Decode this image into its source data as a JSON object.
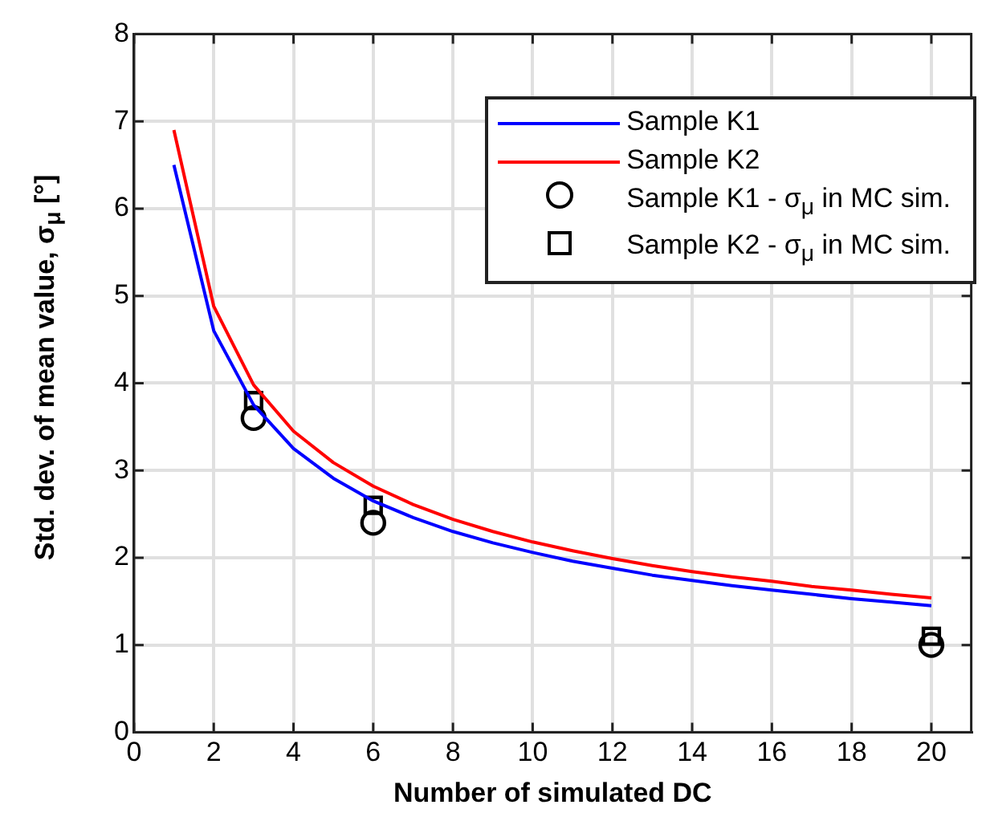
{
  "chart_data": {
    "type": "line",
    "xlabel": "Number of simulated DC",
    "ylabel": "Std. dev. of mean value, σ$_{μ}$ [°]",
    "xlim": [
      0,
      21
    ],
    "xticks": [
      0,
      2,
      4,
      6,
      8,
      10,
      12,
      14,
      16,
      18,
      20
    ],
    "ylim": [
      0,
      8
    ],
    "yticks": [
      0,
      1,
      2,
      3,
      4,
      5,
      6,
      7,
      8
    ],
    "grid": true,
    "legend": "top right",
    "series": [
      {
        "name": "Sample K1",
        "type": "line",
        "color": "#0000ff",
        "marker": "none",
        "x": [
          1,
          2,
          3,
          4,
          5,
          6,
          7,
          8,
          9,
          10,
          11,
          12,
          13,
          14,
          15,
          16,
          17,
          18,
          19,
          20
        ],
        "values": [
          6.5,
          4.6,
          3.75,
          3.25,
          2.91,
          2.65,
          2.46,
          2.3,
          2.17,
          2.06,
          1.96,
          1.88,
          1.8,
          1.74,
          1.68,
          1.63,
          1.58,
          1.53,
          1.49,
          1.45
        ]
      },
      {
        "name": "Sample K2",
        "type": "line",
        "color": "#ff0000",
        "marker": "none",
        "x": [
          1,
          2,
          3,
          4,
          5,
          6,
          7,
          8,
          9,
          10,
          11,
          12,
          13,
          14,
          15,
          16,
          17,
          18,
          19,
          20
        ],
        "values": [
          6.9,
          4.88,
          3.98,
          3.45,
          3.09,
          2.82,
          2.61,
          2.44,
          2.3,
          2.18,
          2.08,
          1.99,
          1.91,
          1.84,
          1.78,
          1.73,
          1.67,
          1.63,
          1.58,
          1.54
        ]
      },
      {
        "name": "Sample K1 - σ$_{μ}$ in MC sim.",
        "type": "scatter",
        "color": "#000000",
        "marker": "circle",
        "x": [
          3,
          6,
          20
        ],
        "values": [
          3.6,
          2.4,
          1.0
        ]
      },
      {
        "name": "Sample K2 - σ$_{μ}$ in MC sim.",
        "type": "scatter",
        "color": "#000000",
        "marker": "square",
        "x": [
          3,
          6,
          20
        ],
        "values": [
          3.8,
          2.6,
          1.1
        ]
      }
    ]
  }
}
